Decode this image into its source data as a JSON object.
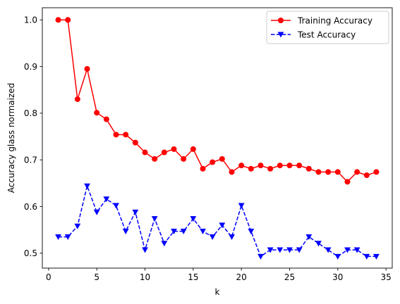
{
  "chart_data": {
    "type": "line",
    "title": "",
    "xlabel": "k",
    "ylabel": "Accuracy glass normaized",
    "xlim": [
      -0.65,
      35.65
    ],
    "ylim": [
      0.468,
      1.026
    ],
    "xticks": [
      0,
      5,
      10,
      15,
      20,
      25,
      30,
      35
    ],
    "yticks": [
      0.5,
      0.6,
      0.7,
      0.8,
      0.9,
      1.0
    ],
    "ytick_labels": [
      "0.5",
      "0.6",
      "0.7",
      "0.8",
      "0.9",
      "1.0"
    ],
    "grid": false,
    "legend_position": "top-right",
    "x": [
      1,
      2,
      3,
      4,
      5,
      6,
      7,
      8,
      9,
      10,
      11,
      12,
      13,
      14,
      15,
      16,
      17,
      18,
      19,
      20,
      21,
      22,
      23,
      24,
      25,
      26,
      27,
      28,
      29,
      30,
      31,
      32,
      33,
      34
    ],
    "series": [
      {
        "name": "Training Accuracy",
        "color": "#ff0000",
        "line_style": "solid",
        "marker": "circle",
        "values": [
          1.0,
          1.0,
          0.83,
          0.895,
          0.801,
          0.787,
          0.754,
          0.754,
          0.737,
          0.716,
          0.702,
          0.716,
          0.723,
          0.702,
          0.723,
          0.681,
          0.695,
          0.702,
          0.674,
          0.688,
          0.681,
          0.688,
          0.681,
          0.688,
          0.688,
          0.688,
          0.681,
          0.674,
          0.674,
          0.674,
          0.653,
          0.674,
          0.667,
          0.674
        ]
      },
      {
        "name": "Test Accuracy",
        "color": "#0000ff",
        "line_style": "dashed",
        "marker": "triangle-down",
        "values": [
          0.535,
          0.535,
          0.558,
          0.644,
          0.588,
          0.616,
          0.602,
          0.547,
          0.588,
          0.507,
          0.574,
          0.521,
          0.547,
          0.547,
          0.574,
          0.547,
          0.535,
          0.56,
          0.535,
          0.602,
          0.547,
          0.493,
          0.507,
          0.507,
          0.507,
          0.507,
          0.535,
          0.521,
          0.507,
          0.493,
          0.507,
          0.507,
          0.493,
          0.493
        ]
      }
    ]
  }
}
